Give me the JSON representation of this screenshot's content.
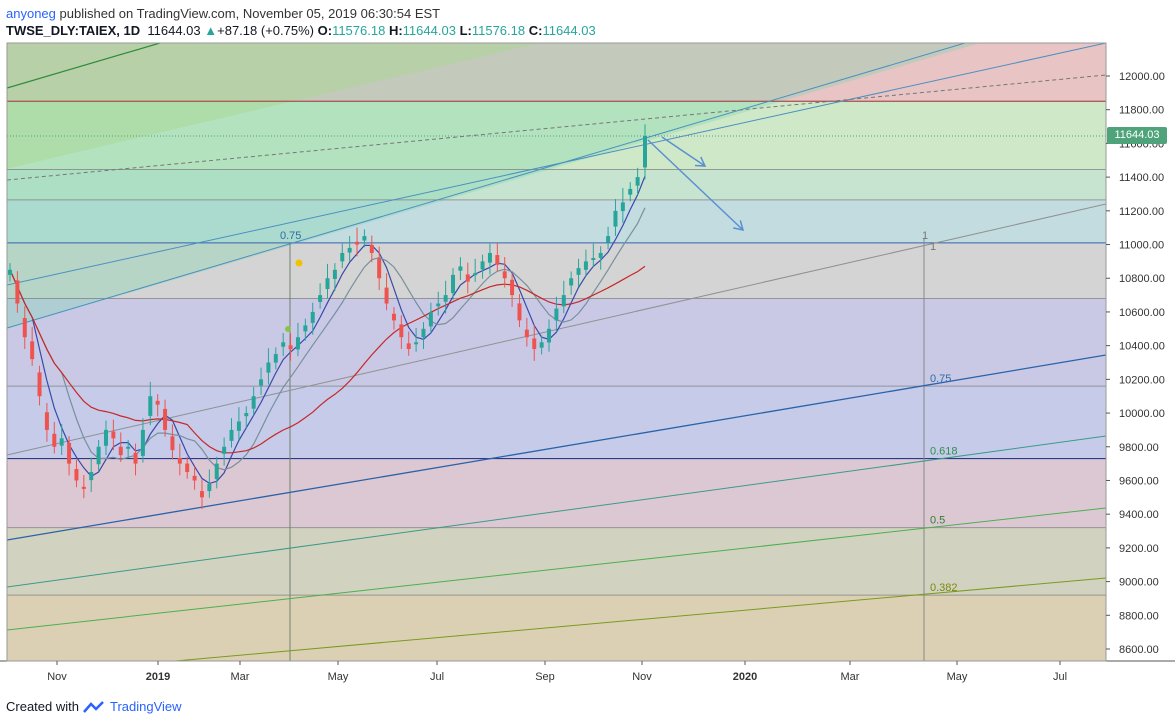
{
  "header": {
    "user": "anyoneg",
    "published_text": "published on TradingView.com, November 05, 2019 06:30:54 EST",
    "symbol": "TWSE_DLY:TAIEX, 1D",
    "last": "11644.03",
    "change": "+87.18 (+0.75%)",
    "o_label": "O:",
    "o_value": "11576.18",
    "h_label": "H:",
    "h_value": "11644.03",
    "l_label": "L:",
    "l_value": "11576.18",
    "c_label": "C:",
    "c_value": "11644.03"
  },
  "price_tag": "11644.03",
  "footer": {
    "created_with": "Created with",
    "brand": "TradingView"
  },
  "colors": {
    "up": "#26a69a",
    "down": "#ef5350",
    "accent": "#2962ff",
    "ma_red": "#c62828",
    "ma_blue": "#3949ab",
    "ma_gray": "#78909c"
  },
  "chart_data": {
    "type": "candlestick",
    "title": "TWSE_DLY:TAIEX, 1D",
    "x_ticks": [
      "Nov",
      "2019",
      "Mar",
      "May",
      "Jul",
      "Sep",
      "Nov",
      "2020",
      "Mar",
      "May",
      "Jul"
    ],
    "y_ticks": [
      12000,
      11800,
      11600,
      11400,
      11200,
      11000,
      10800,
      10600,
      10400,
      10200,
      10000,
      9800,
      9600,
      9400,
      9200,
      9000,
      8800,
      8600
    ],
    "y_tick_labels": [
      "12000.00",
      "11800.00",
      "11600.00",
      "11400.00",
      "11200.00",
      "11000.00",
      "10800.00",
      "10600.00",
      "10400.00",
      "10200.00",
      "10000.00",
      "9800.00",
      "9600.00",
      "9400.00",
      "9200.00",
      "9000.00",
      "8800.00",
      "8600.00"
    ],
    "ylim": [
      8520,
      12200
    ],
    "last_price": 11644.03,
    "fib_levels": [
      {
        "label": "0.75",
        "price": 11010
      },
      {
        "label": "0.75",
        "price": 10160
      },
      {
        "label": "0.618",
        "price": 9730
      },
      {
        "label": "0.5",
        "price": 9320
      },
      {
        "label": "0.382",
        "price": 8920
      }
    ],
    "horizontal_levels": [
      11850,
      11445,
      11265,
      11010,
      10680,
      10160,
      9730,
      9320,
      8920
    ],
    "close_series": [
      10850,
      10650,
      10450,
      10320,
      10100,
      9900,
      9800,
      9850,
      9700,
      9600,
      9550,
      9650,
      9800,
      9900,
      9850,
      9750,
      9800,
      9700,
      9900,
      10100,
      10050,
      9900,
      9780,
      9700,
      9650,
      9600,
      9500,
      9580,
      9700,
      9800,
      9900,
      9950,
      10000,
      10100,
      10200,
      10300,
      10350,
      10420,
      10380,
      10450,
      10520,
      10600,
      10700,
      10800,
      10850,
      10950,
      10980,
      11000,
      11050,
      10950,
      10800,
      10650,
      10550,
      10450,
      10380,
      10420,
      10500,
      10600,
      10650,
      10700,
      10820,
      10870,
      10780,
      10830,
      10900,
      10950,
      10880,
      10800,
      10700,
      10550,
      10450,
      10380,
      10420,
      10500,
      10620,
      10700,
      10800,
      10860,
      10900,
      10920,
      10950,
      11050,
      11200,
      11250,
      11330,
      11400,
      11644
    ],
    "annotation_labels": [
      "1",
      "1"
    ]
  }
}
